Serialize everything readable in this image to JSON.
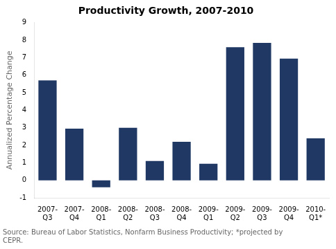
{
  "chart_data": {
    "type": "bar",
    "title": "Productivity Growth, 2007-2010",
    "ylabel": "Annualized Percentage Change",
    "categories": [
      "2007-\nQ3",
      "2007-\nQ4",
      "2008-\nQ1",
      "2008-\nQ2",
      "2008-\nQ3",
      "2008-\nQ4",
      "2009-\nQ1",
      "2009-\nQ2",
      "2009-\nQ3",
      "2009-\nQ4",
      "2010-\nQ1*"
    ],
    "values": [
      5.7,
      2.95,
      -0.4,
      3.0,
      1.1,
      2.2,
      0.95,
      7.6,
      7.85,
      6.95,
      2.4
    ],
    "color": "#1F3864",
    "ylim": [
      -1,
      9
    ],
    "yticks": [
      -1,
      0,
      1,
      2,
      3,
      4,
      5,
      6,
      7,
      8,
      9
    ],
    "grid": false,
    "source": "Source: Bureau of Labor Statistics, Nonfarm Business Productivity; *projected by\nCEPR."
  }
}
